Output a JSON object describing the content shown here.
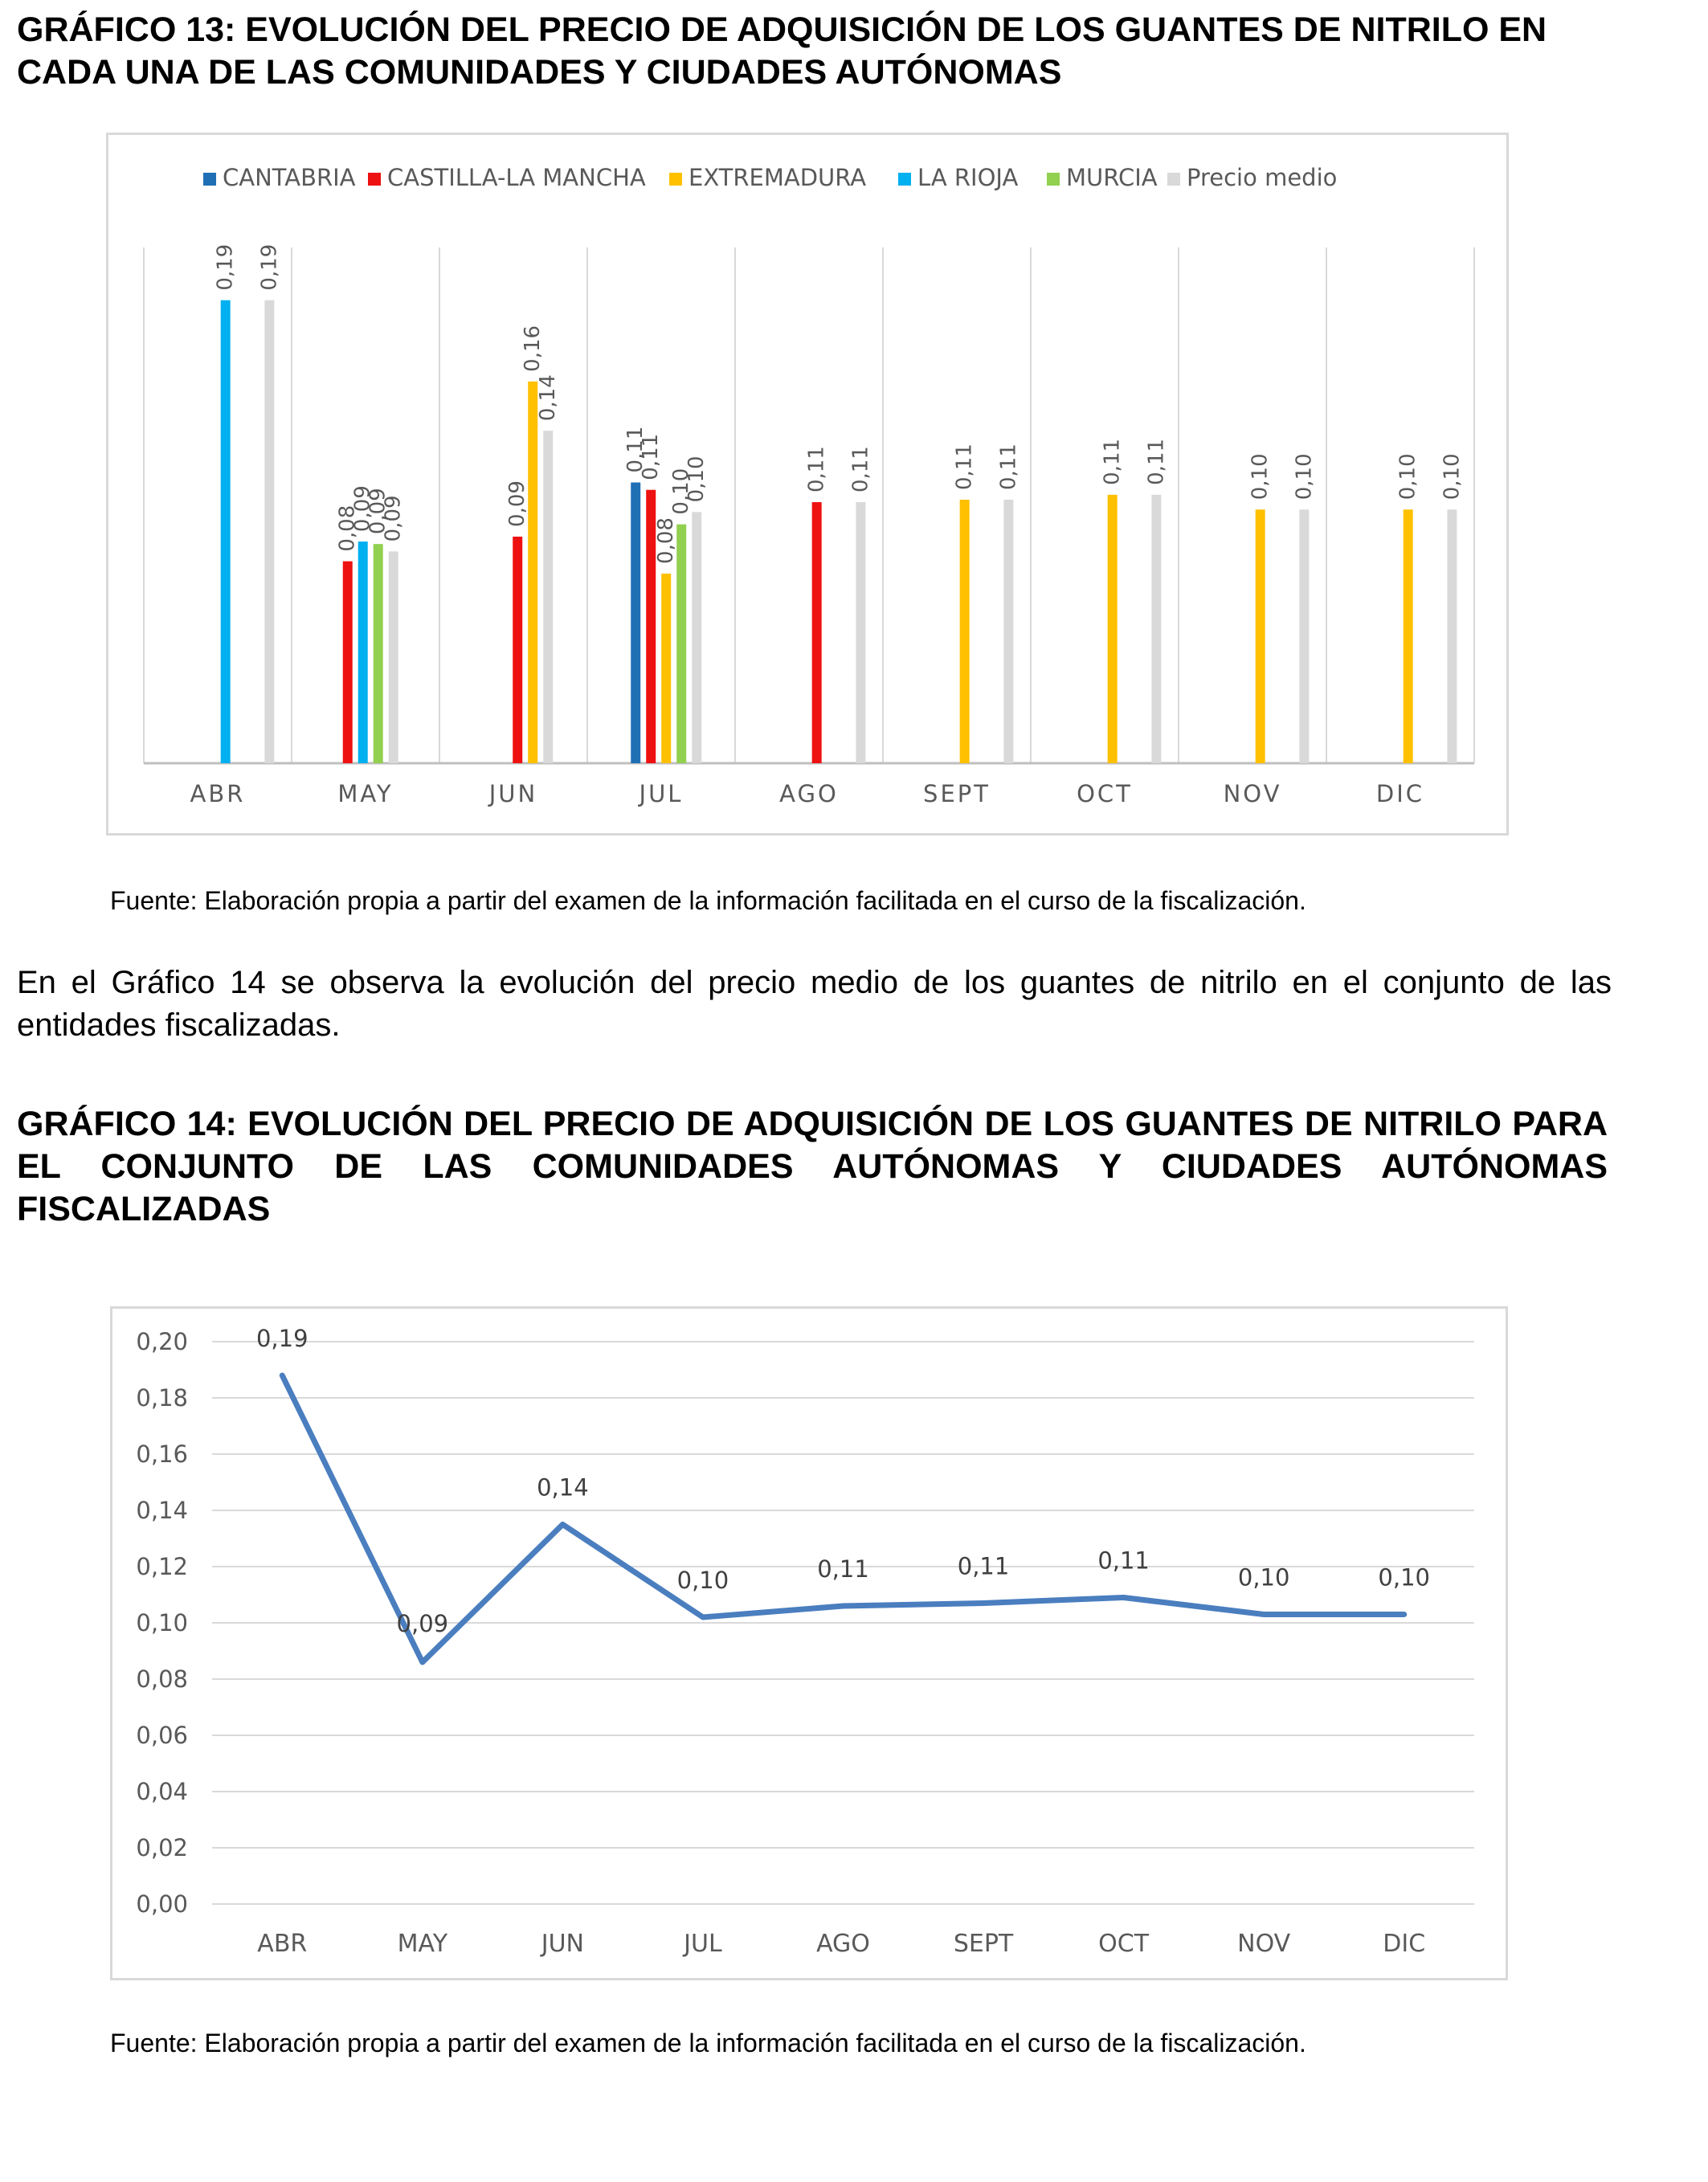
{
  "chart13_heading": "GRÁFICO 13: EVOLUCIÓN DEL PRECIO DE ADQUISICIÓN DE LOS GUANTES DE NITRILO EN CADA UNA DE LAS COMUNIDADES Y CIUDADES AUTÓNOMAS",
  "chart13_source": "Fuente: Elaboración propia a partir del examen de la información facilitada en el curso de la fiscalización.",
  "paragraph": "En el Gráfico 14 se observa la evolución del precio medio de los guantes de nitrilo en el conjunto de las entidades fiscalizadas.",
  "chart14_heading": "GRÁFICO 14: EVOLUCIÓN DEL PRECIO DE ADQUISICIÓN DE LOS GUANTES DE NITRILO PARA EL CONJUNTO DE LAS COMUNIDADES AUTÓNOMAS Y CIUDADES AUTÓNOMAS FISCALIZADAS",
  "chart14_source": "Fuente: Elaboración propia a partir del examen de la información facilitada en el curso de la fiscalización.",
  "chart_data": [
    {
      "type": "bar",
      "title": "",
      "xlabel": "",
      "ylabel": "",
      "ylim": [
        0,
        0.2
      ],
      "grid": false,
      "legend_position": "top",
      "categories": [
        "ABR",
        "MAY",
        "JUN",
        "JUL",
        "AGO",
        "SEPT",
        "OCT",
        "NOV",
        "DIC"
      ],
      "series": [
        {
          "name": "CANTABRIA",
          "color": "#1f6fb5",
          "values": [
            null,
            null,
            null,
            0.114,
            null,
            null,
            null,
            null,
            null
          ],
          "labels": [
            null,
            null,
            null,
            "0,11",
            null,
            null,
            null,
            null,
            null
          ]
        },
        {
          "name": "CASTILLA-LA MANCHA",
          "color": "#ee1111",
          "values": [
            null,
            0.082,
            0.092,
            0.111,
            0.106,
            null,
            null,
            null,
            null
          ],
          "labels": [
            null,
            "0,08",
            "0,09",
            "0,11",
            "0,11",
            null,
            null,
            null,
            null
          ]
        },
        {
          "name": "EXTREMADURA",
          "color": "#ffc000",
          "values": [
            null,
            null,
            0.155,
            0.077,
            null,
            0.107,
            0.109,
            0.103,
            0.103
          ],
          "labels": [
            null,
            null,
            "0,16",
            "0,08",
            null,
            "0,11",
            "0,11",
            "0,10",
            "0,10"
          ]
        },
        {
          "name": "LA RIOJA",
          "color": "#00b0f0",
          "values": [
            0.188,
            0.09,
            null,
            null,
            null,
            null,
            null,
            null,
            null
          ],
          "labels": [
            "0,19",
            "0,09",
            null,
            null,
            null,
            null,
            null,
            null,
            null
          ]
        },
        {
          "name": "MURCIA",
          "color": "#92d050",
          "values": [
            null,
            0.089,
            null,
            0.097,
            null,
            null,
            null,
            null,
            null
          ],
          "labels": [
            null,
            "0,09",
            null,
            "0,10",
            null,
            null,
            null,
            null,
            null
          ]
        },
        {
          "name": "Precio medio",
          "color": "#d9d9d9",
          "values": [
            0.188,
            0.086,
            0.135,
            0.102,
            0.106,
            0.107,
            0.109,
            0.103,
            0.103
          ],
          "labels": [
            "0,19",
            "0,09",
            "0,14",
            "0,10",
            "0,11",
            "0,11",
            "0,11",
            "0,10",
            "0,10"
          ]
        }
      ]
    },
    {
      "type": "line",
      "title": "",
      "xlabel": "",
      "ylabel": "",
      "ylim": [
        0,
        0.2
      ],
      "grid": true,
      "x": [
        "ABR",
        "MAY",
        "JUN",
        "JUL",
        "AGO",
        "SEPT",
        "OCT",
        "NOV",
        "DIC"
      ],
      "yticks": [
        "0,00",
        "0,02",
        "0,04",
        "0,06",
        "0,08",
        "0,10",
        "0,12",
        "0,14",
        "0,16",
        "0,18",
        "0,20"
      ],
      "series": [
        {
          "color": "#4a7ebf",
          "values": [
            0.188,
            0.086,
            0.135,
            0.102,
            0.106,
            0.107,
            0.109,
            0.103,
            0.103
          ],
          "labels": [
            "0,19",
            "0,09",
            "0,14",
            "0,10",
            "0,11",
            "0,11",
            "0,11",
            "0,10",
            "0,10"
          ]
        }
      ]
    }
  ]
}
